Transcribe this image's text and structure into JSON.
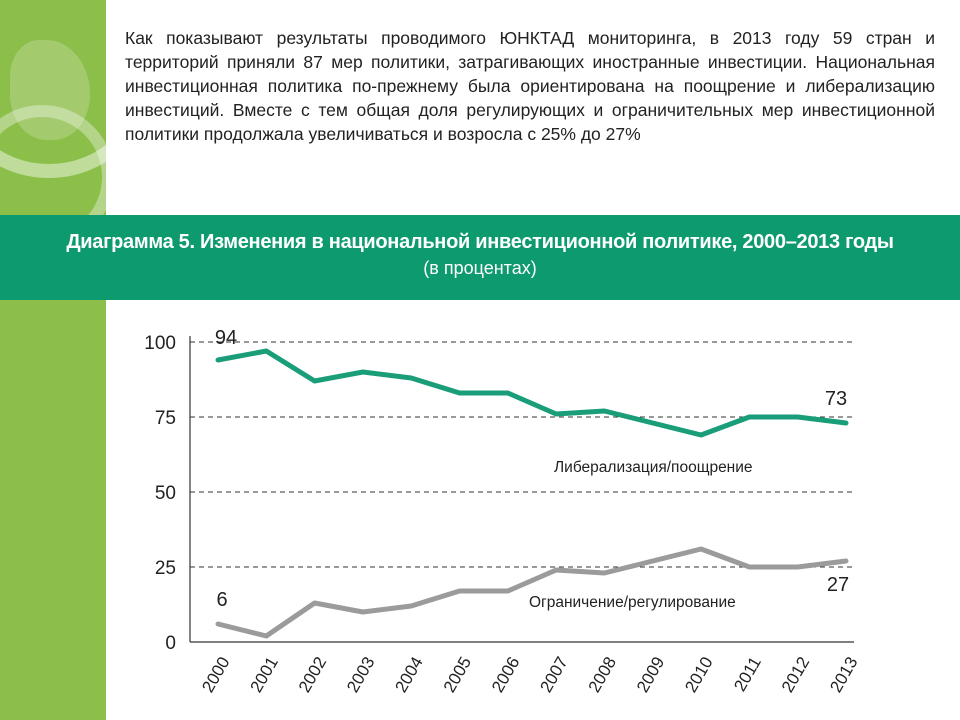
{
  "paragraph": "Как показывают результаты проводимого ЮНКТАД мониторинга, в 2013 году 59 стран и территорий приняли 87 мер политики, затрагивающих иностранные инвестиции. Национальная инвестиционная политика по-прежнему была ориентирована на поощрение и либерализацию инвестиций. Вместе с тем общая доля регулирующих и ограничительных мер инвестиционной политики продолжала увеличиваться и возросла с 25% до 27%",
  "colors": {
    "accent_strip": "#8cbf4a",
    "banner": "#0e9a6f",
    "series_liberalization": "#1a9e7a",
    "series_restriction": "#9b9b9b"
  },
  "chart_data": {
    "type": "line",
    "title": "Диаграмма 5. Изменения в национальной инвестиционной политике, 2000–2013 годы",
    "subtitle": "(в процентах)",
    "categories": [
      "2000",
      "2001",
      "2002",
      "2003",
      "2004",
      "2005",
      "2006",
      "2007",
      "2008",
      "2009",
      "2010",
      "2011",
      "2012",
      "2013"
    ],
    "series": [
      {
        "name": "Либерализация/поощрение",
        "values": [
          94,
          97,
          87,
          90,
          88,
          83,
          83,
          76,
          77,
          73,
          69,
          75,
          75,
          73
        ]
      },
      {
        "name": "Ограничение/регулирование",
        "values": [
          6,
          2,
          13,
          10,
          12,
          17,
          17,
          24,
          23,
          27,
          31,
          25,
          25,
          27
        ]
      }
    ],
    "ylim": [
      0,
      100
    ],
    "yticks": [
      0,
      25,
      50,
      75,
      100
    ],
    "grid": "horizontal-dashed",
    "annotations": [
      {
        "text": "94",
        "series": 0,
        "index": 0
      },
      {
        "text": "73",
        "series": 0,
        "index": 13
      },
      {
        "text": "6",
        "series": 1,
        "index": 0
      },
      {
        "text": "27",
        "series": 1,
        "index": 13
      }
    ]
  }
}
